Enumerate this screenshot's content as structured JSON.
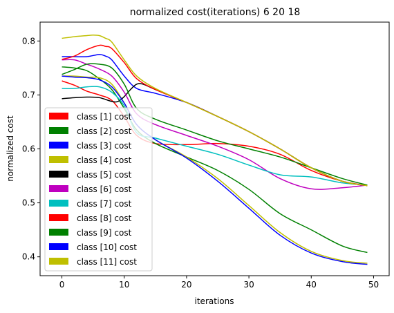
{
  "chart_data": {
    "type": "line",
    "title": "normalized cost(iterations) 6 20 18",
    "xlabel": "iterations",
    "ylabel": "normalized cost",
    "xlim": [
      -3.5,
      52.5
    ],
    "ylim": [
      0.365,
      0.835
    ],
    "xticks": [
      0,
      10,
      20,
      30,
      40,
      50
    ],
    "yticks": [
      0.4,
      0.5,
      0.6,
      0.7,
      0.8
    ],
    "xtick_labels": [
      "0",
      "10",
      "20",
      "30",
      "40",
      "50"
    ],
    "ytick_labels": [
      "0.4",
      "0.5",
      "0.6",
      "0.7",
      "0.8"
    ],
    "grid": false,
    "legend_position": "lower-left",
    "series": [
      {
        "name": "class [1] cost",
        "color": "#ff0000",
        "x": [
          0,
          2,
          4,
          6,
          8,
          10,
          12,
          15,
          20,
          25,
          30,
          35,
          40,
          45,
          49
        ],
        "y": [
          0.726,
          0.718,
          0.707,
          0.7,
          0.69,
          0.66,
          0.625,
          0.61,
          0.608,
          0.61,
          0.605,
          0.59,
          0.56,
          0.54,
          0.532
        ]
      },
      {
        "name": "class [2] cost",
        "color": "#008000",
        "x": [
          0,
          2,
          4,
          6,
          8,
          10,
          12,
          15,
          20,
          25,
          30,
          35,
          40,
          45,
          49
        ],
        "y": [
          0.752,
          0.75,
          0.745,
          0.73,
          0.71,
          0.675,
          0.635,
          0.61,
          0.585,
          0.56,
          0.525,
          0.48,
          0.45,
          0.42,
          0.408
        ]
      },
      {
        "name": "class [3] cost",
        "color": "#0000ff",
        "x": [
          0,
          2,
          4,
          6,
          7,
          8,
          10,
          12,
          15,
          20,
          25,
          30,
          35,
          40,
          45,
          49
        ],
        "y": [
          0.771,
          0.771,
          0.771,
          0.775,
          0.772,
          0.765,
          0.735,
          0.712,
          0.703,
          0.686,
          0.66,
          0.632,
          0.6,
          0.565,
          0.54,
          0.532
        ]
      },
      {
        "name": "class [4] cost",
        "color": "#bfbf00",
        "x": [
          0,
          2,
          4,
          6,
          8,
          10,
          12,
          15,
          20,
          25,
          30,
          35,
          40,
          45,
          49
        ],
        "y": [
          0.735,
          0.735,
          0.733,
          0.732,
          0.72,
          0.685,
          0.645,
          0.617,
          0.585,
          0.545,
          0.495,
          0.445,
          0.41,
          0.393,
          0.388
        ]
      },
      {
        "name": "class [5] cost",
        "color": "#000000",
        "x": [
          0,
          2,
          4,
          6,
          8,
          9,
          10,
          11,
          12,
          13,
          15,
          20,
          25,
          30,
          35,
          40,
          45,
          49
        ],
        "y": [
          0.693,
          0.695,
          0.696,
          0.695,
          0.688,
          0.688,
          0.697,
          0.71,
          0.72,
          0.72,
          0.71,
          0.686,
          0.66,
          0.632,
          0.6,
          0.565,
          0.54,
          0.532
        ]
      },
      {
        "name": "class [6] cost",
        "color": "#bf00bf",
        "x": [
          0,
          2,
          4,
          6,
          8,
          10,
          12,
          15,
          20,
          25,
          30,
          35,
          40,
          45,
          49
        ],
        "y": [
          0.765,
          0.765,
          0.757,
          0.748,
          0.735,
          0.705,
          0.665,
          0.645,
          0.625,
          0.605,
          0.58,
          0.545,
          0.526,
          0.528,
          0.533
        ]
      },
      {
        "name": "class [7] cost",
        "color": "#00bfbf",
        "x": [
          0,
          2,
          4,
          6,
          8,
          10,
          12,
          15,
          20,
          25,
          30,
          35,
          40,
          45,
          49
        ],
        "y": [
          0.712,
          0.712,
          0.715,
          0.715,
          0.705,
          0.68,
          0.63,
          0.62,
          0.605,
          0.59,
          0.57,
          0.552,
          0.548,
          0.537,
          0.533
        ]
      },
      {
        "name": "class [8] cost",
        "color": "#ff0000",
        "x": [
          0,
          2,
          4,
          6,
          7,
          8,
          10,
          12,
          15,
          20,
          25,
          30,
          35,
          40,
          45,
          49
        ],
        "y": [
          0.766,
          0.772,
          0.784,
          0.792,
          0.79,
          0.786,
          0.76,
          0.73,
          0.71,
          0.686,
          0.66,
          0.632,
          0.6,
          0.565,
          0.54,
          0.532
        ]
      },
      {
        "name": "class [9] cost",
        "color": "#008000",
        "x": [
          0,
          2,
          4,
          6,
          8,
          10,
          12,
          15,
          20,
          25,
          30,
          35,
          40,
          45,
          49
        ],
        "y": [
          0.738,
          0.747,
          0.757,
          0.757,
          0.75,
          0.72,
          0.675,
          0.655,
          0.635,
          0.615,
          0.6,
          0.585,
          0.565,
          0.545,
          0.533
        ]
      },
      {
        "name": "class [10] cost",
        "color": "#0000ff",
        "x": [
          0,
          2,
          4,
          6,
          8,
          10,
          12,
          15,
          20,
          25,
          30,
          35,
          40,
          45,
          49
        ],
        "y": [
          0.735,
          0.733,
          0.732,
          0.728,
          0.715,
          0.685,
          0.645,
          0.617,
          0.583,
          0.54,
          0.49,
          0.44,
          0.407,
          0.391,
          0.386
        ]
      },
      {
        "name": "class [11] cost",
        "color": "#bfbf00",
        "x": [
          0,
          2,
          4,
          5,
          6,
          7,
          8,
          10,
          12,
          15,
          20,
          25,
          30,
          35,
          40,
          45,
          49
        ],
        "y": [
          0.805,
          0.808,
          0.81,
          0.811,
          0.81,
          0.805,
          0.798,
          0.765,
          0.735,
          0.712,
          0.686,
          0.66,
          0.632,
          0.6,
          0.565,
          0.54,
          0.532
        ]
      }
    ]
  }
}
